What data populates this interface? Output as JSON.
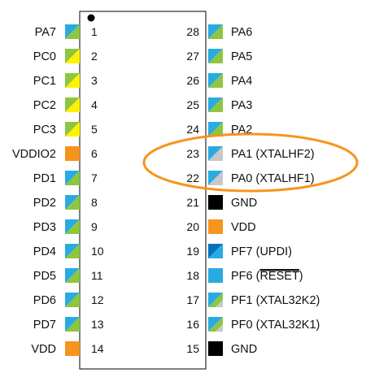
{
  "diagram": {
    "pins_left": [
      {
        "num": "1",
        "label": "PA7",
        "colors": [
          "#29abe2",
          "#8dc63f"
        ]
      },
      {
        "num": "2",
        "label": "PC0",
        "colors": [
          "#8dc63f",
          "#fff200"
        ]
      },
      {
        "num": "3",
        "label": "PC1",
        "colors": [
          "#8dc63f",
          "#fff200"
        ]
      },
      {
        "num": "4",
        "label": "PC2",
        "colors": [
          "#8dc63f",
          "#fff200"
        ]
      },
      {
        "num": "5",
        "label": "PC3",
        "colors": [
          "#8dc63f",
          "#fff200"
        ]
      },
      {
        "num": "6",
        "label": "VDDIO2",
        "colors": [
          "#f7941d"
        ]
      },
      {
        "num": "7",
        "label": "PD1",
        "colors": [
          "#29abe2",
          "#8dc63f"
        ]
      },
      {
        "num": "8",
        "label": "PD2",
        "colors": [
          "#29abe2",
          "#8dc63f"
        ]
      },
      {
        "num": "9",
        "label": "PD3",
        "colors": [
          "#29abe2",
          "#8dc63f"
        ]
      },
      {
        "num": "10",
        "label": "PD4",
        "colors": [
          "#29abe2",
          "#8dc63f"
        ]
      },
      {
        "num": "11",
        "label": "PD5",
        "colors": [
          "#29abe2",
          "#8dc63f"
        ]
      },
      {
        "num": "12",
        "label": "PD6",
        "colors": [
          "#29abe2",
          "#8dc63f"
        ]
      },
      {
        "num": "13",
        "label": "PD7",
        "colors": [
          "#29abe2",
          "#8dc63f"
        ]
      },
      {
        "num": "14",
        "label": "VDD",
        "colors": [
          "#f7941d"
        ]
      }
    ],
    "pins_right": [
      {
        "num": "28",
        "label": "PA6",
        "colors": [
          "#29abe2",
          "#8dc63f"
        ]
      },
      {
        "num": "27",
        "label": "PA5",
        "colors": [
          "#29abe2",
          "#8dc63f"
        ]
      },
      {
        "num": "26",
        "label": "PA4",
        "colors": [
          "#29abe2",
          "#8dc63f"
        ]
      },
      {
        "num": "25",
        "label": "PA3",
        "colors": [
          "#29abe2",
          "#8dc63f"
        ]
      },
      {
        "num": "24",
        "label": "PA2",
        "colors": [
          "#29abe2",
          "#8dc63f"
        ]
      },
      {
        "num": "23",
        "label": "PA1 (XTALHF2)",
        "colors": [
          "#29abe2",
          "#c8c8c8"
        ]
      },
      {
        "num": "22",
        "label": "PA0 (XTALHF1)",
        "colors": [
          "#29abe2",
          "#c8c8c8"
        ]
      },
      {
        "num": "21",
        "label": "GND",
        "colors": [
          "#000000"
        ]
      },
      {
        "num": "20",
        "label": "VDD",
        "colors": [
          "#f7941d"
        ]
      },
      {
        "num": "19",
        "label": "PF7 (UPDI)",
        "colors": [
          "#0072bc",
          "#29abe2"
        ]
      },
      {
        "num": "18",
        "label": "PF6 (RESET)",
        "colors": [
          "#29abe2"
        ]
      },
      {
        "num": "17",
        "label": "PF1 (XTAL32K2)",
        "colors": [
          "#29abe2",
          "#8dc63f",
          "#c8c8c8"
        ]
      },
      {
        "num": "16",
        "label": "PF0 (XTAL32K1)",
        "colors": [
          "#29abe2",
          "#8dc63f",
          "#c8c8c8"
        ]
      },
      {
        "num": "15",
        "label": "GND",
        "colors": [
          "#000000"
        ]
      }
    ],
    "highlight_color": "#f7941d"
  }
}
